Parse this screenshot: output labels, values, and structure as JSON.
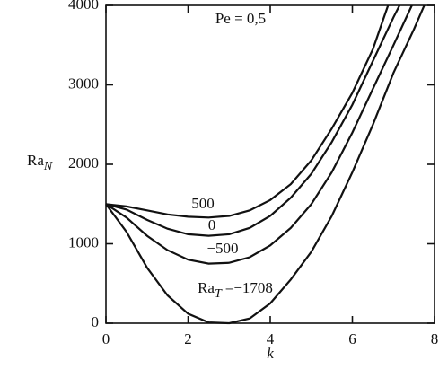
{
  "chart_data": {
    "type": "line",
    "annotation": "Pe = 0,5",
    "xlabel": "k",
    "ylabel": "Ra",
    "ylabel_subscript": "N",
    "curve_param": {
      "symbol": "Ra",
      "subscript": "T",
      "sign": "="
    },
    "xlim": [
      0,
      8
    ],
    "ylim": [
      0,
      4000
    ],
    "xticks": [
      0,
      2,
      4,
      6,
      8
    ],
    "yticks": [
      0,
      1000,
      2000,
      3000,
      4000
    ],
    "series": [
      {
        "name": "500",
        "color": "#111111",
        "x": [
          0,
          0.5,
          1,
          1.5,
          2,
          2.5,
          3,
          3.5,
          4,
          4.5,
          5,
          5.5,
          6,
          6.5,
          6.87
        ],
        "values": [
          1500,
          1470,
          1420,
          1370,
          1340,
          1330,
          1350,
          1420,
          1550,
          1750,
          2050,
          2450,
          2900,
          3450,
          4000
        ]
      },
      {
        "name": "0",
        "color": "#111111",
        "x": [
          0,
          0.5,
          1,
          1.5,
          2,
          2.5,
          3,
          3.5,
          4,
          4.5,
          5,
          5.5,
          6,
          6.5,
          7,
          7.15
        ],
        "values": [
          1500,
          1430,
          1300,
          1190,
          1120,
          1100,
          1120,
          1200,
          1350,
          1580,
          1880,
          2280,
          2750,
          3300,
          3850,
          4000
        ]
      },
      {
        "name": "−500",
        "color": "#111111",
        "x": [
          0,
          0.5,
          1,
          1.5,
          2,
          2.5,
          3,
          3.5,
          4,
          4.5,
          5,
          5.5,
          6,
          6.5,
          7,
          7.45
        ],
        "values": [
          1500,
          1330,
          1100,
          920,
          800,
          750,
          760,
          830,
          980,
          1200,
          1500,
          1900,
          2400,
          2950,
          3500,
          4000
        ]
      },
      {
        "name": "−1708",
        "color": "#111111",
        "x": [
          0,
          0.5,
          1,
          1.5,
          2,
          2.5,
          3,
          3.5,
          4,
          4.5,
          5,
          5.5,
          6,
          6.5,
          7,
          7.5,
          7.75
        ],
        "values": [
          1500,
          1150,
          700,
          350,
          120,
          10,
          0,
          60,
          250,
          550,
          900,
          1350,
          1900,
          2500,
          3150,
          3700,
          4000
        ]
      }
    ]
  }
}
